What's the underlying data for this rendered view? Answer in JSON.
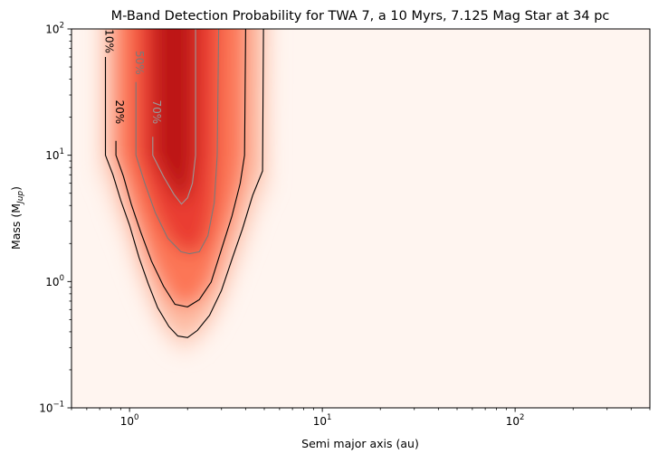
{
  "chart_data": {
    "type": "heatmap",
    "title": "M-Band Detection Probability for TWA 7, a 10 Myrs, 7.125 Mag Star at 34 pc",
    "xlabel": "Semi major axis (au)",
    "ylabel_main": "Mass (M",
    "ylabel_sub": "Jup",
    "ylabel_close": ")",
    "xscale": "log",
    "yscale": "log",
    "xlim": [
      0.5,
      500
    ],
    "ylim": [
      0.1,
      100
    ],
    "x_ticks": [
      {
        "value": 1,
        "base": "10",
        "exp": "0"
      },
      {
        "value": 10,
        "base": "10",
        "exp": "1"
      },
      {
        "value": 100,
        "base": "10",
        "exp": "2"
      }
    ],
    "y_ticks": [
      {
        "value": 0.1,
        "base": "10",
        "exp": "−1"
      },
      {
        "value": 1,
        "base": "10",
        "exp": "0"
      },
      {
        "value": 10,
        "base": "10",
        "exp": "1"
      },
      {
        "value": 100,
        "base": "10",
        "exp": "2"
      }
    ],
    "colormap": {
      "low": "#fff5f0",
      "mid": "#fb6a4a",
      "high": "#bd1519"
    },
    "contours": [
      {
        "level": "10%",
        "color": "#000000",
        "points": [
          [
            0.75,
            60
          ],
          [
            0.75,
            10
          ],
          [
            0.82,
            7
          ],
          [
            0.9,
            4.4
          ],
          [
            1.0,
            2.8
          ],
          [
            1.12,
            1.55
          ],
          [
            1.25,
            0.96
          ],
          [
            1.4,
            0.62
          ],
          [
            1.6,
            0.44
          ],
          [
            1.78,
            0.37
          ],
          [
            2.0,
            0.36
          ],
          [
            2.25,
            0.41
          ],
          [
            2.6,
            0.54
          ],
          [
            3.0,
            0.85
          ],
          [
            3.4,
            1.5
          ],
          [
            3.85,
            2.6
          ],
          [
            4.35,
            4.8
          ],
          [
            4.9,
            7.5
          ],
          [
            4.95,
            100
          ]
        ]
      },
      {
        "level": "20%",
        "color": "#000000",
        "points": [
          [
            0.85,
            13
          ],
          [
            0.85,
            10
          ],
          [
            0.93,
            6.8
          ],
          [
            1.02,
            4.1
          ],
          [
            1.14,
            2.5
          ],
          [
            1.3,
            1.45
          ],
          [
            1.5,
            0.92
          ],
          [
            1.72,
            0.66
          ],
          [
            2.0,
            0.63
          ],
          [
            2.3,
            0.72
          ],
          [
            2.65,
            0.99
          ],
          [
            3.0,
            1.8
          ],
          [
            3.4,
            3.3
          ],
          [
            3.75,
            6
          ],
          [
            3.95,
            10
          ],
          [
            4.0,
            100
          ]
        ]
      },
      {
        "level": "50%",
        "color": "#7a7a7a",
        "points": [
          [
            1.08,
            38
          ],
          [
            1.08,
            10
          ],
          [
            1.2,
            6
          ],
          [
            1.36,
            3.5
          ],
          [
            1.58,
            2.2
          ],
          [
            1.85,
            1.72
          ],
          [
            2.05,
            1.66
          ],
          [
            2.3,
            1.72
          ],
          [
            2.55,
            2.3
          ],
          [
            2.75,
            4.2
          ],
          [
            2.85,
            10
          ],
          [
            2.9,
            100
          ]
        ]
      },
      {
        "level": "70%",
        "color": "#9a9a9a",
        "points": [
          [
            1.32,
            14
          ],
          [
            1.32,
            10
          ],
          [
            1.5,
            6.8
          ],
          [
            1.7,
            4.9
          ],
          [
            1.86,
            4.1
          ],
          [
            2.0,
            4.6
          ],
          [
            2.12,
            6
          ],
          [
            2.2,
            10
          ],
          [
            2.2,
            100
          ]
        ]
      }
    ],
    "contour_labels": [
      {
        "text": "10%",
        "x": 0.78,
        "y": 80,
        "color": "#000000"
      },
      {
        "text": "20%",
        "x": 0.88,
        "y": 22,
        "color": "#000000"
      },
      {
        "text": "50%",
        "x": 1.12,
        "y": 54,
        "color": "#7a7a7a"
      },
      {
        "text": "70%",
        "x": 1.37,
        "y": 22,
        "color": "#9a9a9a"
      }
    ]
  }
}
